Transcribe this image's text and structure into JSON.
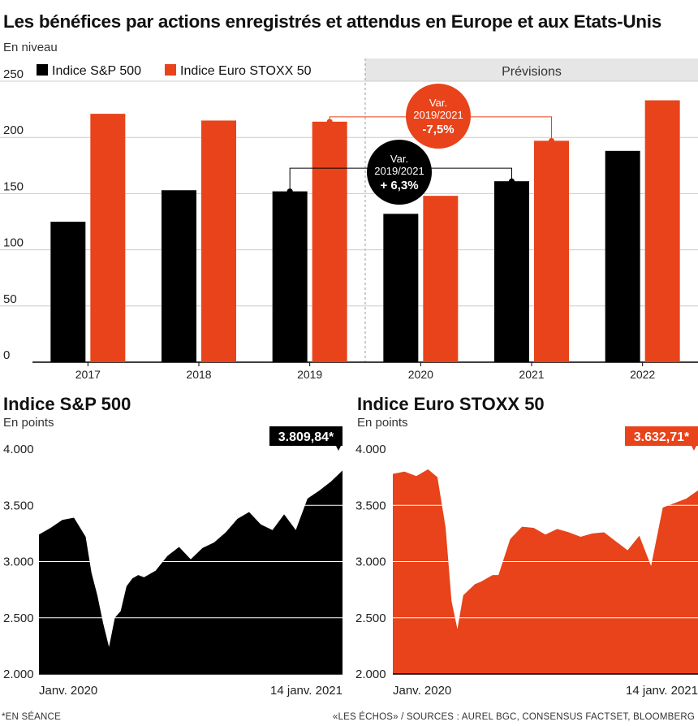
{
  "title": "Les bénéfices par actions enregistrés et attendus en Europe et aux Etats-Unis",
  "unit": "En niveau",
  "colors": {
    "sp": "#000000",
    "euro": "#e8431a",
    "forecast_bg": "#e6e6e6",
    "grid": "#cccccc"
  },
  "chart_data": [
    {
      "type": "bar",
      "categories": [
        "2017",
        "2018",
        "2019",
        "2020",
        "2021",
        "2022"
      ],
      "series": [
        {
          "name": "Indice S&P 500",
          "values": [
            125,
            153,
            152,
            132,
            161,
            188
          ]
        },
        {
          "name": "Indice Euro STOXX 50",
          "values": [
            221,
            215,
            214,
            148,
            197,
            233
          ]
        }
      ],
      "ylim": [
        0,
        250
      ],
      "yticks": [
        "0",
        "50",
        "100",
        "150",
        "200",
        "250"
      ],
      "forecast_label": "Prévisions",
      "forecast_start": "2020",
      "legend": "top-left",
      "annotations": [
        {
          "line1": "Var.",
          "line2": "2019/2021",
          "line3": "+ 6,3%",
          "series": "Indice S&P 500",
          "from": "2019",
          "to": "2021"
        },
        {
          "line1": "Var.",
          "line2": "2019/2021",
          "line3": "-7,5%",
          "series": "Indice Euro STOXX 50",
          "from": "2019",
          "to": "2021"
        }
      ]
    },
    {
      "type": "area",
      "title": "Indice S&P 500",
      "unit": "En points",
      "x_start_label": "Janv. 2020",
      "x_end_label": "14 janv. 2021",
      "last_value_label": "3.809,84*",
      "ylim": [
        2000,
        4000
      ],
      "yticks": [
        "2.000",
        "2.500",
        "3.000",
        "3.500",
        "4.000"
      ],
      "x": [
        0,
        10,
        20,
        30,
        40,
        45,
        50,
        55,
        60,
        65,
        70,
        75,
        80,
        85,
        90,
        100,
        110,
        120,
        130,
        140,
        150,
        160,
        170,
        180,
        190,
        200,
        210,
        220,
        230,
        240,
        250,
        260
      ],
      "values": [
        3240,
        3300,
        3370,
        3390,
        3220,
        2900,
        2700,
        2450,
        2240,
        2500,
        2560,
        2780,
        2850,
        2880,
        2860,
        2920,
        3050,
        3130,
        3020,
        3120,
        3170,
        3260,
        3380,
        3440,
        3330,
        3280,
        3420,
        3280,
        3560,
        3630,
        3710,
        3810
      ]
    },
    {
      "type": "area",
      "title": "Indice Euro STOXX 50",
      "unit": "En points",
      "x_start_label": "Janv. 2020",
      "x_end_label": "14 janv. 2021",
      "last_value_label": "3.632,71*",
      "ylim": [
        2000,
        4000
      ],
      "yticks": [
        "2.000",
        "2.500",
        "3.000",
        "3.500",
        "4.000"
      ],
      "x": [
        0,
        10,
        20,
        30,
        38,
        45,
        50,
        55,
        60,
        65,
        70,
        75,
        80,
        85,
        90,
        100,
        110,
        120,
        130,
        140,
        150,
        160,
        170,
        180,
        190,
        200,
        210,
        220,
        230,
        240,
        250,
        260
      ],
      "values": [
        3780,
        3800,
        3760,
        3820,
        3750,
        3300,
        2650,
        2400,
        2700,
        2750,
        2800,
        2820,
        2850,
        2880,
        2880,
        3200,
        3310,
        3300,
        3240,
        3290,
        3260,
        3220,
        3250,
        3260,
        3180,
        3100,
        3230,
        2960,
        3480,
        3520,
        3560,
        3633
      ]
    }
  ],
  "footnote_left": "*EN SÉANCE",
  "footnote_right": "«LES ÉCHOS» / SOURCES : AUREL BGC, CONSENSUS FACTSET, BLOOMBERG"
}
